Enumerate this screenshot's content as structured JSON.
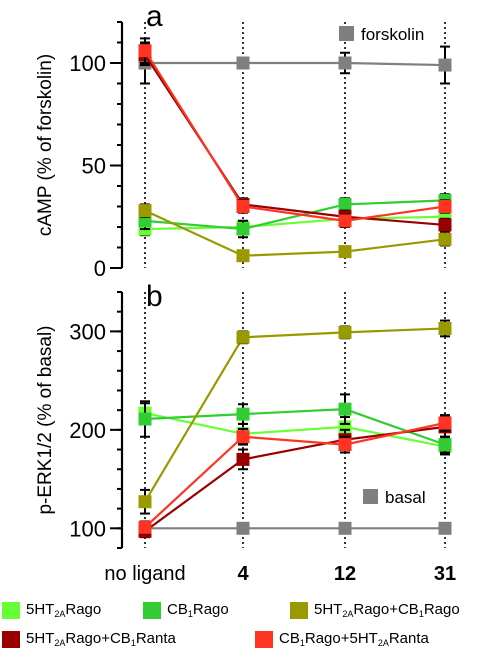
{
  "chart_data": [
    {
      "type": "line",
      "panel_letter": "a",
      "title": "",
      "xlabel": "",
      "ylabel": "cAMP (% of forskolin)",
      "ylim": [
        0,
        120
      ],
      "yticks": [
        "0",
        "50",
        "100"
      ],
      "categories": [
        "no ligand",
        "4",
        "12",
        "31"
      ],
      "series": [
        {
          "name": "forskolin",
          "color": "#7f7f7f",
          "values": [
            100,
            100,
            100,
            99
          ],
          "errors": [
            10,
            2,
            5,
            9
          ]
        },
        {
          "name": "5HT2ARago",
          "color": "#66ff33",
          "values": [
            19,
            20,
            24,
            25
          ],
          "errors": [
            3,
            3,
            3,
            3
          ]
        },
        {
          "name": "CB1Rago",
          "color": "#33cc33",
          "values": [
            23,
            19,
            31,
            33
          ],
          "errors": [
            4,
            4,
            3,
            3
          ]
        },
        {
          "name": "5HT2ARago+CB1Rago",
          "color": "#999900",
          "values": [
            28,
            6,
            8,
            14
          ],
          "errors": [
            3,
            2,
            2,
            3
          ]
        },
        {
          "name": "5HT2ARago+CB1Ranta",
          "color": "#990000",
          "values": [
            104,
            31,
            25,
            21
          ],
          "errors": [
            5,
            3,
            3,
            3
          ]
        },
        {
          "name": "CB1Rago+5HT2ARanta",
          "color": "#ff3322",
          "values": [
            106,
            30,
            23,
            30
          ],
          "errors": [
            6,
            3,
            3,
            3
          ]
        }
      ],
      "inline_legend": "forskolin"
    },
    {
      "type": "line",
      "panel_letter": "b",
      "title": "",
      "xlabel": "",
      "ylabel": "p-ERK1/2 (% of basal)",
      "ylim": [
        80,
        340
      ],
      "yticks": [
        "100",
        "200",
        "300"
      ],
      "categories": [
        "no ligand",
        "4",
        "12",
        "31"
      ],
      "series": [
        {
          "name": "basal",
          "color": "#7f7f7f",
          "values": [
            100,
            100,
            100,
            100
          ],
          "errors": [
            0,
            0,
            0,
            0
          ]
        },
        {
          "name": "5HT2ARago",
          "color": "#66ff33",
          "values": [
            217,
            196,
            203,
            183
          ],
          "errors": [
            10,
            10,
            10,
            8
          ]
        },
        {
          "name": "CB1Rago",
          "color": "#33cc33",
          "values": [
            211,
            216,
            221,
            185
          ],
          "errors": [
            18,
            10,
            15,
            8
          ]
        },
        {
          "name": "5HT2ARago+CB1Rago",
          "color": "#999900",
          "values": [
            127,
            294,
            299,
            303
          ],
          "errors": [
            12,
            6,
            6,
            8
          ]
        },
        {
          "name": "5HT2ARago+CB1Ranta",
          "color": "#990000",
          "values": [
            97,
            170,
            190,
            203
          ],
          "errors": [
            6,
            10,
            10,
            10
          ]
        },
        {
          "name": "CB1Rago+5HT2ARanta",
          "color": "#ff3322",
          "values": [
            101,
            193,
            185,
            207
          ],
          "errors": [
            6,
            8,
            8,
            8
          ]
        }
      ],
      "inline_legend": "basal"
    }
  ],
  "legend": [
    {
      "pre": "5HT",
      "sub1": "2A",
      "mid": "Rago",
      "sub2": "",
      "post": "",
      "color": "#66ff33"
    },
    {
      "pre": "CB",
      "sub1": "1",
      "mid": "Rago",
      "sub2": "",
      "post": "",
      "color": "#33cc33"
    },
    {
      "pre": "5HT",
      "sub1": "2A",
      "mid": "Rago+CB",
      "sub2": "1",
      "post": "Rago",
      "color": "#999900"
    },
    {
      "pre": "5HT",
      "sub1": "2A",
      "mid": "Rago+CB",
      "sub2": "1",
      "post": "Ranta",
      "color": "#990000"
    },
    {
      "pre": "CB",
      "sub1": "1",
      "mid": "Rago+5HT",
      "sub2": "2A",
      "post": "Ranta",
      "color": "#ff3322"
    }
  ]
}
